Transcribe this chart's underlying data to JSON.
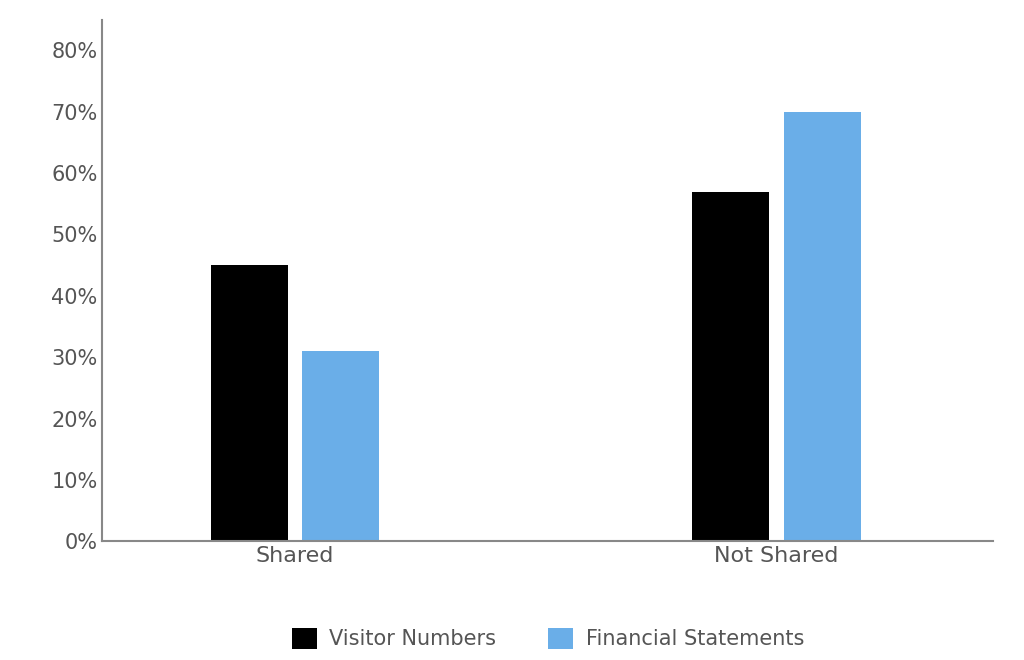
{
  "categories": [
    "Shared",
    "Not Shared"
  ],
  "visitor_numbers": [
    0.45,
    0.57
  ],
  "financial_statements": [
    0.31,
    0.7
  ],
  "bar_color_visitor": "#000000",
  "bar_color_financial": "#6aaee8",
  "legend_labels": [
    "Visitor Numbers",
    "Financial Statements"
  ],
  "ylim": [
    0,
    0.85
  ],
  "yticks": [
    0.0,
    0.1,
    0.2,
    0.3,
    0.4,
    0.5,
    0.6,
    0.7,
    0.8
  ],
  "bar_width": 0.32,
  "background_color": "#ffffff",
  "spine_color": "#888888",
  "tick_label_fontsize": 15,
  "legend_fontsize": 15,
  "x_tick_fontsize": 16
}
